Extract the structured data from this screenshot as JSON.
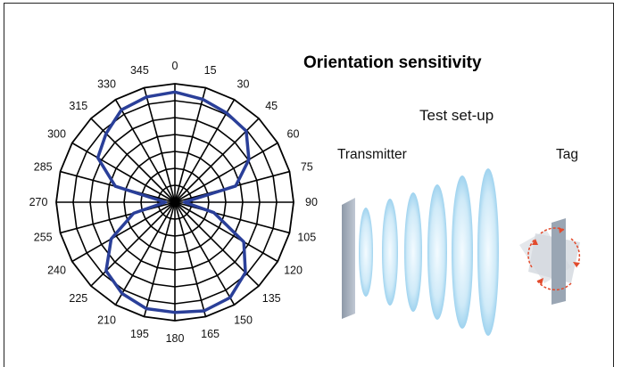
{
  "chart_data": {
    "type": "polar-line",
    "title": "Orientation sensitivity",
    "angle_labels": [
      "0",
      "15",
      "30",
      "45",
      "60",
      "75",
      "90",
      "105",
      "120",
      "135",
      "150",
      "165",
      "180",
      "195",
      "210",
      "225",
      "240",
      "255",
      "270",
      "285",
      "300",
      "315",
      "330",
      "345"
    ],
    "radial_rings": 7,
    "grid": true,
    "series": [
      {
        "color": "#2a3f99",
        "points": [
          {
            "angle": 0,
            "r": 0.93
          },
          {
            "angle": 15,
            "r": 0.9
          },
          {
            "angle": 30,
            "r": 0.87
          },
          {
            "angle": 45,
            "r": 0.85
          },
          {
            "angle": 60,
            "r": 0.72
          },
          {
            "angle": 75,
            "r": 0.53
          },
          {
            "angle": 90,
            "r": 0.08
          },
          {
            "angle": 105,
            "r": 0.34
          },
          {
            "angle": 120,
            "r": 0.67
          },
          {
            "angle": 135,
            "r": 0.84
          },
          {
            "angle": 150,
            "r": 0.93
          },
          {
            "angle": 165,
            "r": 0.95
          },
          {
            "angle": 180,
            "r": 0.93
          },
          {
            "angle": 195,
            "r": 0.93
          },
          {
            "angle": 210,
            "r": 0.89
          },
          {
            "angle": 225,
            "r": 0.82
          },
          {
            "angle": 240,
            "r": 0.62
          },
          {
            "angle": 255,
            "r": 0.36
          },
          {
            "angle": 270,
            "r": 0.08
          },
          {
            "angle": 285,
            "r": 0.52
          },
          {
            "angle": 300,
            "r": 0.75
          },
          {
            "angle": 315,
            "r": 0.82
          },
          {
            "angle": 330,
            "r": 0.9
          },
          {
            "angle": 345,
            "r": 0.92
          }
        ]
      }
    ]
  },
  "setup": {
    "title": "Test set-up",
    "transmitter_label": "Transmitter",
    "tag_label": "Tag"
  },
  "colors": {
    "series": "#2a3f99",
    "wave": "#bfe3f5",
    "plate": "#a9b4c2",
    "arrow": "#e24a2c"
  }
}
